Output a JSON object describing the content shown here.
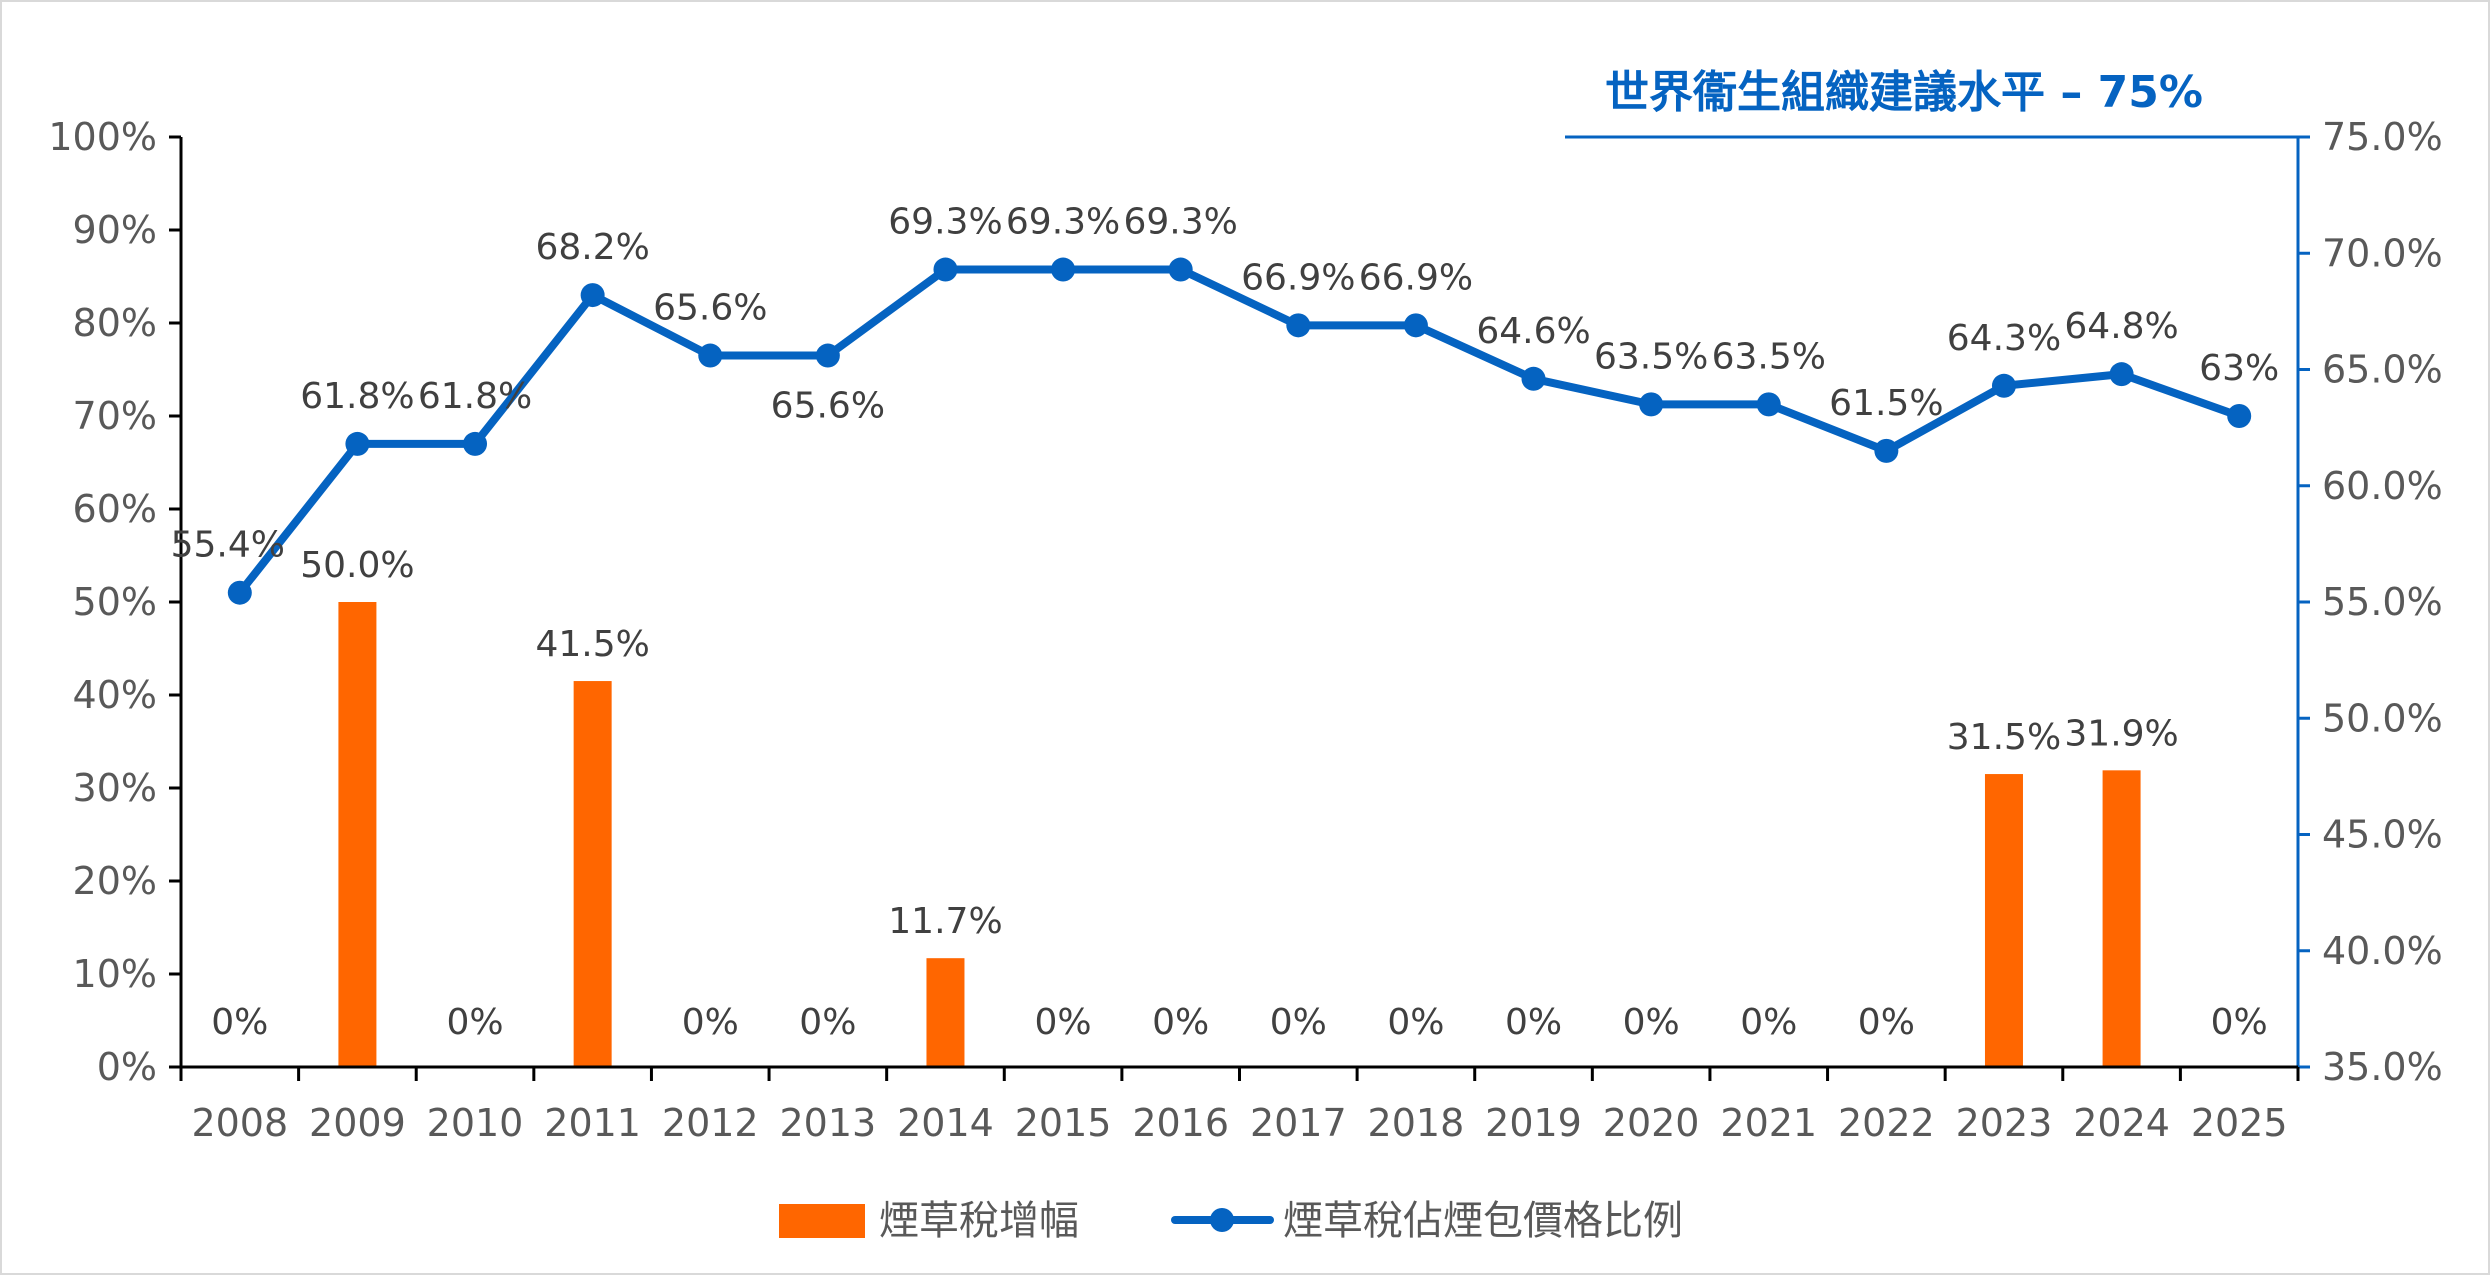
{
  "colors": {
    "bar": "#FF6600",
    "line": "#0563C1",
    "axis_left": "#000000",
    "axis_right": "#0563C1",
    "tick_text": "#595959",
    "label_text": "#404040",
    "reference": "#0563C1"
  },
  "chart_data": {
    "type": "bar+line",
    "categories": [
      "2008",
      "2009",
      "2010",
      "2011",
      "2012",
      "2013",
      "2014",
      "2015",
      "2016",
      "2017",
      "2018",
      "2019",
      "2020",
      "2021",
      "2022",
      "2023",
      "2024",
      "2025"
    ],
    "y_left": {
      "ylim": [
        0,
        100
      ],
      "ticks": [
        "0%",
        "10%",
        "20%",
        "30%",
        "40%",
        "50%",
        "60%",
        "70%",
        "80%",
        "90%",
        "100%"
      ]
    },
    "y_right": {
      "ylim": [
        35,
        75
      ],
      "ticks": [
        "35.0%",
        "40.0%",
        "45.0%",
        "50.0%",
        "55.0%",
        "60.0%",
        "65.0%",
        "70.0%",
        "75.0%"
      ]
    },
    "series": [
      {
        "name": "煙草稅增幅",
        "type": "bar",
        "axis": "left",
        "values": [
          0,
          50.0,
          0,
          41.5,
          0,
          0,
          11.7,
          0,
          0,
          0,
          0,
          0,
          0,
          0,
          0,
          31.5,
          31.9,
          0
        ],
        "labels": [
          "0%",
          "50.0%",
          "0%",
          "41.5%",
          "0%",
          "0%",
          "11.7%",
          "0%",
          "0%",
          "0%",
          "0%",
          "0%",
          "0%",
          "0%",
          "0%",
          "31.5%",
          "31.9%",
          "0%"
        ]
      },
      {
        "name": "煙草稅佔煙包價格比例",
        "type": "line",
        "axis": "right",
        "values": [
          55.4,
          61.8,
          61.8,
          68.2,
          65.6,
          65.6,
          69.3,
          69.3,
          69.3,
          66.9,
          66.9,
          64.6,
          63.5,
          63.5,
          61.5,
          64.3,
          64.8,
          63
        ],
        "labels": [
          "55.4%",
          "61.8%",
          "61.8%",
          "68.2%",
          "65.6%",
          "65.6%",
          "69.3%",
          "69.3%",
          "69.3%",
          "66.9%",
          "66.9%",
          "64.6%",
          "63.5%",
          "63.5%",
          "61.5%",
          "64.3%",
          "64.8%",
          "63%"
        ]
      }
    ],
    "reference_line": {
      "label": "世界衞生組織建議水平 – 75%",
      "value": 75,
      "axis": "right"
    },
    "grid": false,
    "legend": "bottom-center"
  }
}
